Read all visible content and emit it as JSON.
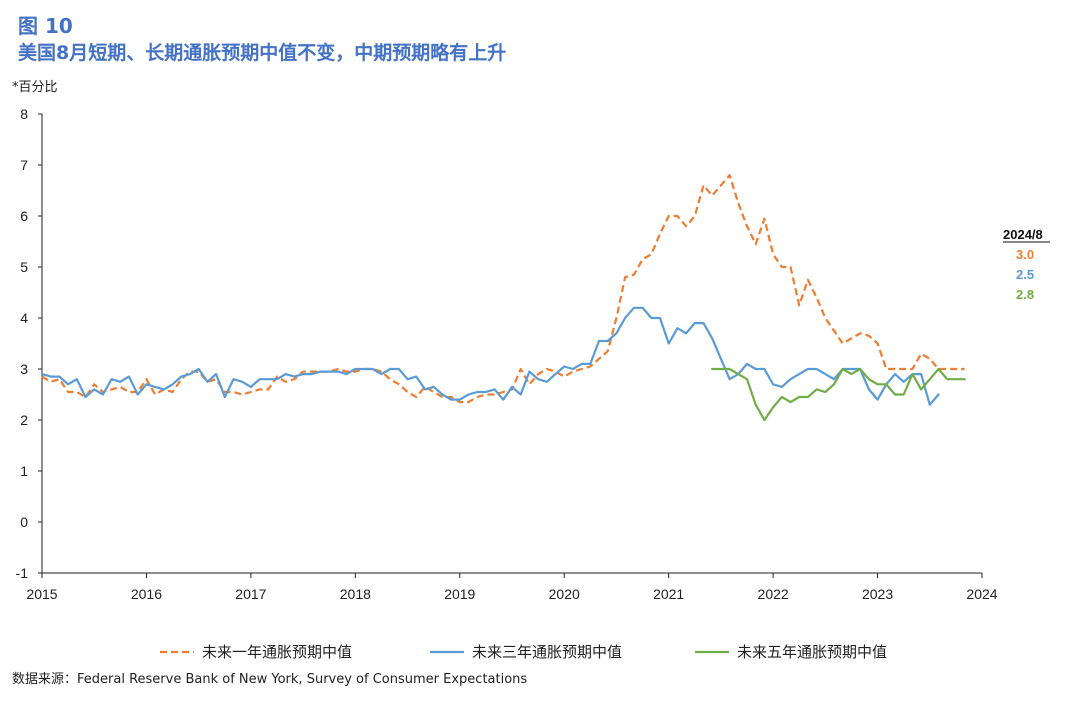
{
  "figure": {
    "label": "图 10",
    "title": "美国8月短期、长期通胀预期中值不变，中期预期略有上升",
    "unit": "*百分比",
    "source": "数据来源：Federal Reserve Bank of New York, Survey of Consumer Expectations"
  },
  "colors": {
    "title": "#4472C4",
    "one_year": "#ED7D31",
    "three_year": "#5B9BD5",
    "five_year": "#70AD47",
    "axis": "#222222"
  },
  "chart_data": {
    "type": "line",
    "title": "",
    "xlabel": "",
    "ylabel": "",
    "xlim": [
      2015.0,
      2024.0
    ],
    "ylim": [
      -1,
      8
    ],
    "yticks": [
      "-1",
      "0",
      "1",
      "2",
      "3",
      "4",
      "5",
      "6",
      "7",
      "8"
    ],
    "xticks": [
      "2015",
      "2016",
      "2017",
      "2018",
      "2019",
      "2020",
      "2021",
      "2022",
      "2023",
      "2024"
    ],
    "grid": false,
    "legend_position": "bottom",
    "latest_annotation": {
      "label": "2024/8",
      "values": [
        "3.0",
        "2.5",
        "2.8"
      ]
    },
    "series": [
      {
        "name": "未来一年通胀预期中值",
        "style": "dashed",
        "start": "2015-01",
        "values": [
          2.85,
          2.75,
          2.8,
          2.55,
          2.55,
          2.45,
          2.7,
          2.55,
          2.6,
          2.65,
          2.55,
          2.55,
          2.8,
          2.5,
          2.6,
          2.55,
          2.8,
          2.95,
          2.95,
          2.75,
          2.8,
          2.55,
          2.55,
          2.5,
          2.55,
          2.6,
          2.6,
          2.85,
          2.75,
          2.8,
          2.95,
          2.95,
          2.95,
          2.95,
          3.0,
          2.95,
          2.95,
          3.0,
          3.0,
          2.95,
          2.8,
          2.7,
          2.55,
          2.45,
          2.65,
          2.55,
          2.45,
          2.45,
          2.35,
          2.35,
          2.45,
          2.5,
          2.5,
          2.55,
          2.6,
          3.0,
          2.7,
          2.9,
          3.0,
          2.95,
          2.85,
          2.95,
          3.0,
          3.05,
          3.2,
          3.35,
          4.0,
          4.8,
          4.85,
          5.15,
          5.25,
          5.65,
          6.0,
          6.0,
          5.8,
          6.0,
          6.6,
          6.4,
          6.6,
          6.8,
          6.25,
          5.8,
          5.45,
          5.95,
          5.25,
          5.0,
          5.0,
          4.25,
          4.75,
          4.4,
          4.0,
          3.75,
          3.5,
          3.6,
          3.7,
          3.65,
          3.5,
          3.0,
          3.0,
          3.0,
          3.0,
          3.3,
          3.2,
          3.0,
          3.0,
          3.0,
          3.0
        ],
        "latest_label": "3.0"
      },
      {
        "name": "未来三年通胀预期中值",
        "style": "solid",
        "start": "2015-01",
        "values": [
          2.9,
          2.85,
          2.85,
          2.7,
          2.8,
          2.45,
          2.6,
          2.5,
          2.8,
          2.75,
          2.85,
          2.5,
          2.7,
          2.65,
          2.6,
          2.7,
          2.85,
          2.9,
          3.0,
          2.75,
          2.9,
          2.45,
          2.8,
          2.75,
          2.65,
          2.8,
          2.8,
          2.8,
          2.9,
          2.85,
          2.9,
          2.9,
          2.95,
          2.95,
          2.95,
          2.9,
          3.0,
          3.0,
          3.0,
          2.9,
          3.0,
          3.0,
          2.8,
          2.85,
          2.6,
          2.65,
          2.5,
          2.4,
          2.4,
          2.5,
          2.55,
          2.55,
          2.6,
          2.4,
          2.65,
          2.5,
          2.95,
          2.8,
          2.75,
          2.9,
          3.05,
          3.0,
          3.1,
          3.1,
          3.55,
          3.55,
          3.7,
          4.0,
          4.2,
          4.2,
          4.0,
          4.0,
          3.5,
          3.8,
          3.7,
          3.9,
          3.9,
          3.6,
          3.2,
          2.8,
          2.9,
          3.1,
          3.0,
          3.0,
          2.7,
          2.65,
          2.8,
          2.9,
          3.0,
          3.0,
          2.9,
          2.8,
          3.0,
          3.0,
          3.0,
          2.6,
          2.4,
          2.7,
          2.9,
          2.75,
          2.9,
          2.9,
          2.3,
          2.5
        ],
        "latest_label": "2.5"
      },
      {
        "name": "未来五年通胀预期中值",
        "style": "solid",
        "start": "2021-06",
        "values": [
          3.0,
          3.0,
          3.0,
          2.9,
          2.8,
          2.3,
          2.0,
          2.25,
          2.45,
          2.35,
          2.45,
          2.45,
          2.6,
          2.55,
          2.7,
          3.0,
          2.9,
          3.0,
          2.8,
          2.7,
          2.7,
          2.5,
          2.5,
          2.9,
          2.6,
          2.8,
          3.0,
          2.8,
          2.8,
          2.8
        ],
        "latest_label": "2.8"
      }
    ]
  }
}
